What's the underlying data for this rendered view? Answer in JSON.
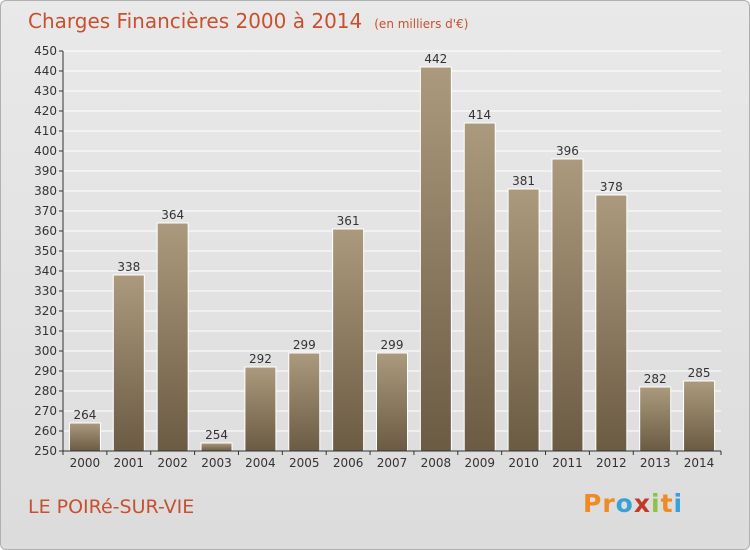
{
  "header": {
    "title": "Charges Financières 2000 à 2014",
    "unit": "(en milliers d'€)"
  },
  "footer": {
    "commune": "LE POIRé-SUR-VIE",
    "logo_text": "Proxiti",
    "logo_colors": [
      "#f08a24",
      "#f08a24",
      "#3aa0d8",
      "#c0392b",
      "#8bc34a",
      "#f08a24",
      "#3aa0d8"
    ]
  },
  "colors": {
    "title": "#c8502e",
    "bar_top": "#ab9a7d",
    "bar_bottom": "#6b5b43",
    "grid": "#ffffff",
    "axis": "#333333"
  },
  "chart_data": {
    "type": "bar",
    "categories": [
      "2000",
      "2001",
      "2002",
      "2003",
      "2004",
      "2005",
      "2006",
      "2007",
      "2008",
      "2009",
      "2010",
      "2011",
      "2012",
      "2013",
      "2014"
    ],
    "values": [
      264,
      338,
      364,
      254,
      292,
      299,
      361,
      299,
      442,
      414,
      381,
      396,
      378,
      282,
      285
    ],
    "title": "Charges Financières 2000 à 2014",
    "subtitle": "(en milliers d'€)",
    "xlabel": "",
    "ylabel": "",
    "ylim": [
      250,
      450
    ],
    "yticks": [
      250,
      260,
      270,
      280,
      290,
      300,
      310,
      320,
      330,
      340,
      350,
      360,
      370,
      380,
      390,
      400,
      410,
      420,
      430,
      440,
      450
    ],
    "grid": true
  }
}
